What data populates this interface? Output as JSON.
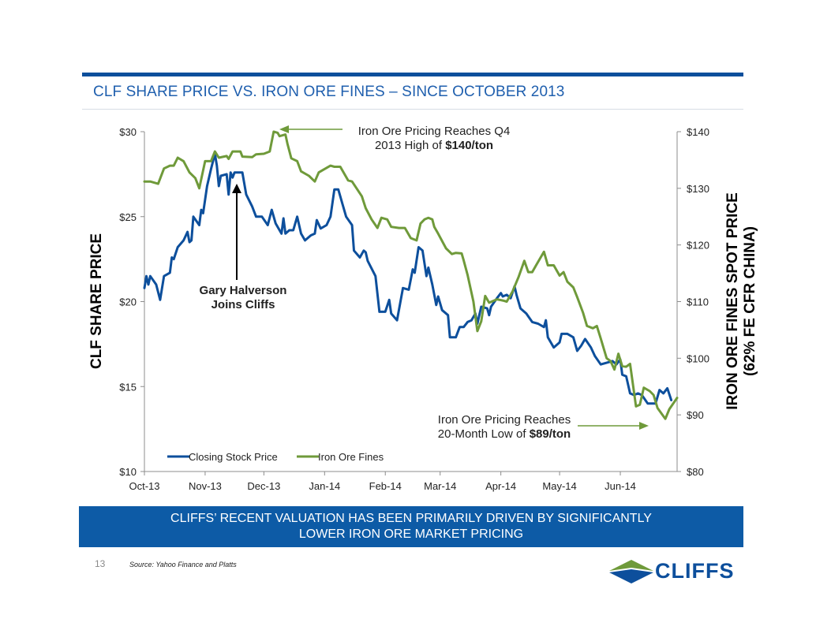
{
  "page": {
    "title": "CLF SHARE PRICE VS. IRON ORE FINES – SINCE OCTOBER 2013",
    "banner_line1": "CLIFFS’ RECENT VALUATION HAS BEEN PRIMARILY DRIVEN BY SIGNIFICANTLY",
    "banner_line2": "LOWER IRON ORE MARKET PRICING",
    "page_number": "13",
    "source": "Source: Yahoo Finance and Platts",
    "logo_text": "CLIFFS",
    "colors": {
      "accent": "#0d4f9c",
      "banner": "#0d5ba6",
      "title": "#1f5fae"
    }
  },
  "chart_data": {
    "type": "line",
    "ylabel_left": "CLF SHARE PRICE",
    "ylabel_right_line1": "IRON ORE FINES SPOT PRICE",
    "ylabel_right_line2": "(62% FE CFR CHINA)",
    "x_ticks": [
      "Oct-13",
      "Nov-13",
      "Dec-13",
      "Jan-14",
      "Feb-14",
      "Mar-14",
      "Apr-14",
      "May-14",
      "Jun-14"
    ],
    "x_range": [
      "2013-10-01",
      "2014-06-30"
    ],
    "y_left": {
      "min": 10,
      "max": 30,
      "step": 5,
      "format": "$"
    },
    "y_right": {
      "min": 80,
      "max": 140,
      "step": 10,
      "format": "$"
    },
    "legend_position": "bottom-left",
    "annotations": {
      "gary_line1": "Gary Halverson",
      "gary_line2": "Joins Cliffs",
      "high_line1": "Iron Ore Pricing  Reaches Q4",
      "high_line2_pre": "2013 High of ",
      "high_line2_bold": "$140/ton",
      "low_line1": "Iron Ore Pricing Reaches",
      "low_line2_pre": "20-Month Low of ",
      "low_line2_bold": "$89/ton"
    },
    "series": [
      {
        "name": "Closing Stock Price",
        "axis": "left",
        "color": "#0d4f9c",
        "points": [
          [
            "2013-10-01",
            20.8
          ],
          [
            "2013-10-02",
            21.5
          ],
          [
            "2013-10-03",
            21.0
          ],
          [
            "2013-10-04",
            21.5
          ],
          [
            "2013-10-07",
            21.0
          ],
          [
            "2013-10-09",
            20.1
          ],
          [
            "2013-10-11",
            21.5
          ],
          [
            "2013-10-14",
            21.7
          ],
          [
            "2013-10-15",
            22.6
          ],
          [
            "2013-10-16",
            22.5
          ],
          [
            "2013-10-18",
            23.2
          ],
          [
            "2013-10-21",
            23.6
          ],
          [
            "2013-10-23",
            24.1
          ],
          [
            "2013-10-24",
            23.5
          ],
          [
            "2013-10-25",
            23.6
          ],
          [
            "2013-10-26",
            25.0
          ],
          [
            "2013-10-29",
            24.5
          ],
          [
            "2013-10-30",
            25.4
          ],
          [
            "2013-10-31",
            25.2
          ],
          [
            "2013-11-02",
            26.8
          ],
          [
            "2013-11-04",
            27.8
          ],
          [
            "2013-11-06",
            28.7
          ],
          [
            "2013-11-07",
            28.0
          ],
          [
            "2013-11-08",
            26.8
          ],
          [
            "2013-11-09",
            27.4
          ],
          [
            "2013-11-12",
            27.5
          ],
          [
            "2013-11-13",
            26.3
          ],
          [
            "2013-11-14",
            27.6
          ],
          [
            "2013-11-15",
            27.3
          ],
          [
            "2013-11-16",
            27.6
          ],
          [
            "2013-11-20",
            27.6
          ],
          [
            "2013-11-22",
            26.3
          ],
          [
            "2013-11-25",
            25.6
          ],
          [
            "2013-11-27",
            25.0
          ],
          [
            "2013-11-30",
            25.0
          ],
          [
            "2013-12-03",
            24.5
          ],
          [
            "2013-12-05",
            25.4
          ],
          [
            "2013-12-07",
            24.6
          ],
          [
            "2013-12-10",
            24.0
          ],
          [
            "2013-12-11",
            24.9
          ],
          [
            "2013-12-12",
            24.0
          ],
          [
            "2013-12-14",
            24.2
          ],
          [
            "2013-12-16",
            24.2
          ],
          [
            "2013-12-18",
            25.0
          ],
          [
            "2013-12-20",
            24.0
          ],
          [
            "2013-12-22",
            23.6
          ],
          [
            "2013-12-25",
            23.9
          ],
          [
            "2013-12-27",
            24.0
          ],
          [
            "2013-12-28",
            24.8
          ],
          [
            "2013-12-30",
            24.3
          ],
          [
            "2014-01-02",
            24.5
          ],
          [
            "2014-01-04",
            25.0
          ],
          [
            "2014-01-06",
            26.6
          ],
          [
            "2014-01-08",
            26.6
          ],
          [
            "2014-01-10",
            25.8
          ],
          [
            "2014-01-12",
            25.0
          ],
          [
            "2014-01-15",
            24.5
          ],
          [
            "2014-01-16",
            23.0
          ],
          [
            "2014-01-19",
            22.6
          ],
          [
            "2014-01-21",
            23.0
          ],
          [
            "2014-01-22",
            22.9
          ],
          [
            "2014-01-23",
            22.4
          ],
          [
            "2014-01-27",
            21.5
          ],
          [
            "2014-01-29",
            19.4
          ],
          [
            "2014-02-01",
            19.4
          ],
          [
            "2014-02-03",
            20.1
          ],
          [
            "2014-02-04",
            19.3
          ],
          [
            "2014-02-07",
            18.9
          ],
          [
            "2014-02-10",
            20.8
          ],
          [
            "2014-02-13",
            20.7
          ],
          [
            "2014-02-15",
            21.9
          ],
          [
            "2014-02-16",
            21.7
          ],
          [
            "2014-02-18",
            23.2
          ],
          [
            "2014-02-20",
            23.0
          ],
          [
            "2014-02-22",
            21.5
          ],
          [
            "2014-02-23",
            22.0
          ],
          [
            "2014-02-25",
            21.0
          ],
          [
            "2014-02-27",
            19.8
          ],
          [
            "2014-02-28",
            20.3
          ],
          [
            "2014-03-02",
            19.5
          ],
          [
            "2014-03-05",
            19.2
          ],
          [
            "2014-03-06",
            17.9
          ],
          [
            "2014-03-09",
            17.9
          ],
          [
            "2014-03-11",
            18.5
          ],
          [
            "2014-03-13",
            18.5
          ],
          [
            "2014-03-15",
            18.8
          ],
          [
            "2014-03-17",
            18.9
          ],
          [
            "2014-03-19",
            19.3
          ],
          [
            "2014-03-20",
            18.7
          ],
          [
            "2014-03-22",
            19.7
          ],
          [
            "2014-03-25",
            19.6
          ],
          [
            "2014-03-26",
            19.2
          ],
          [
            "2014-03-27",
            19.7
          ],
          [
            "2014-03-30",
            20.2
          ],
          [
            "2014-04-01",
            20.5
          ],
          [
            "2014-04-02",
            20.3
          ],
          [
            "2014-04-04",
            20.4
          ],
          [
            "2014-04-06",
            20.2
          ],
          [
            "2014-04-08",
            20.9
          ],
          [
            "2014-04-09",
            20.4
          ],
          [
            "2014-04-11",
            19.6
          ],
          [
            "2014-04-14",
            19.3
          ],
          [
            "2014-04-17",
            18.8
          ],
          [
            "2014-04-20",
            18.7
          ],
          [
            "2014-04-23",
            18.5
          ],
          [
            "2014-04-24",
            18.9
          ],
          [
            "2014-04-25",
            17.9
          ],
          [
            "2014-04-28",
            17.3
          ],
          [
            "2014-05-01",
            17.6
          ],
          [
            "2014-05-02",
            18.1
          ],
          [
            "2014-05-05",
            18.1
          ],
          [
            "2014-05-08",
            17.9
          ],
          [
            "2014-05-10",
            17.1
          ],
          [
            "2014-05-12",
            17.4
          ],
          [
            "2014-05-14",
            17.8
          ],
          [
            "2014-05-17",
            17.3
          ],
          [
            "2014-05-19",
            16.8
          ],
          [
            "2014-05-22",
            16.3
          ],
          [
            "2014-05-25",
            16.4
          ],
          [
            "2014-05-28",
            16.5
          ],
          [
            "2014-05-30",
            16.3
          ],
          [
            "2014-06-01",
            16.6
          ],
          [
            "2014-06-02",
            15.7
          ],
          [
            "2014-06-04",
            15.6
          ],
          [
            "2014-06-06",
            14.6
          ],
          [
            "2014-06-08",
            14.5
          ],
          [
            "2014-06-10",
            14.6
          ],
          [
            "2014-06-12",
            14.5
          ],
          [
            "2014-06-15",
            14.0
          ],
          [
            "2014-06-19",
            14.0
          ],
          [
            "2014-06-21",
            14.8
          ],
          [
            "2014-06-23",
            14.6
          ],
          [
            "2014-06-25",
            14.9
          ],
          [
            "2014-06-27",
            14.2
          ]
        ]
      },
      {
        "name": "Iron Ore Fines",
        "axis": "right",
        "color": "#6f9a3a",
        "points": [
          [
            "2013-10-01",
            131.2
          ],
          [
            "2013-10-04",
            131.2
          ],
          [
            "2013-10-08",
            130.8
          ],
          [
            "2013-10-11",
            133.5
          ],
          [
            "2013-10-14",
            134.0
          ],
          [
            "2013-10-16",
            134.0
          ],
          [
            "2013-10-18",
            135.4
          ],
          [
            "2013-10-21",
            134.8
          ],
          [
            "2013-10-24",
            132.8
          ],
          [
            "2013-10-27",
            131.8
          ],
          [
            "2013-10-29",
            130.0
          ],
          [
            "2013-11-01",
            134.8
          ],
          [
            "2013-11-04",
            134.8
          ],
          [
            "2013-11-06",
            136.5
          ],
          [
            "2013-11-08",
            135.4
          ],
          [
            "2013-11-12",
            135.7
          ],
          [
            "2013-11-13",
            135.2
          ],
          [
            "2013-11-15",
            136.5
          ],
          [
            "2013-11-19",
            136.5
          ],
          [
            "2013-11-20",
            135.6
          ],
          [
            "2013-11-25",
            135.5
          ],
          [
            "2013-11-27",
            136.0
          ],
          [
            "2013-12-01",
            136.1
          ],
          [
            "2013-12-04",
            136.5
          ],
          [
            "2013-12-06",
            140.0
          ],
          [
            "2013-12-08",
            139.8
          ],
          [
            "2013-12-09",
            139.2
          ],
          [
            "2013-12-12",
            139.5
          ],
          [
            "2013-12-13",
            137.9
          ],
          [
            "2013-12-15",
            135.3
          ],
          [
            "2013-12-18",
            134.8
          ],
          [
            "2013-12-20",
            133.0
          ],
          [
            "2013-12-24",
            132.2
          ],
          [
            "2013-12-27",
            131.2
          ],
          [
            "2013-12-29",
            132.8
          ],
          [
            "2013-12-31",
            133.2
          ],
          [
            "2014-01-04",
            134.0
          ],
          [
            "2014-01-06",
            133.8
          ],
          [
            "2014-01-09",
            133.8
          ],
          [
            "2014-01-13",
            131.4
          ],
          [
            "2014-01-15",
            131.2
          ],
          [
            "2014-01-20",
            128.6
          ],
          [
            "2014-01-22",
            126.5
          ],
          [
            "2014-01-25",
            124.5
          ],
          [
            "2014-01-28",
            123.0
          ],
          [
            "2014-01-30",
            124.8
          ],
          [
            "2014-02-02",
            124.5
          ],
          [
            "2014-02-04",
            123.2
          ],
          [
            "2014-02-08",
            123.0
          ],
          [
            "2014-02-11",
            123.0
          ],
          [
            "2014-02-14",
            121.2
          ],
          [
            "2014-02-17",
            120.8
          ],
          [
            "2014-02-19",
            123.8
          ],
          [
            "2014-02-21",
            124.5
          ],
          [
            "2014-02-23",
            124.8
          ],
          [
            "2014-02-25",
            124.5
          ],
          [
            "2014-02-26",
            123.2
          ],
          [
            "2014-02-28",
            122.0
          ],
          [
            "2014-03-04",
            119.4
          ],
          [
            "2014-03-07",
            118.4
          ],
          [
            "2014-03-09",
            118.6
          ],
          [
            "2014-03-12",
            118.5
          ],
          [
            "2014-03-13",
            117.3
          ],
          [
            "2014-03-15",
            114.7
          ],
          [
            "2014-03-18",
            110.0
          ],
          [
            "2014-03-20",
            104.8
          ],
          [
            "2014-03-22",
            106.5
          ],
          [
            "2014-03-24",
            111.0
          ],
          [
            "2014-03-26",
            109.8
          ],
          [
            "2014-03-30",
            110.4
          ],
          [
            "2014-04-02",
            110.2
          ],
          [
            "2014-04-04",
            110.0
          ],
          [
            "2014-04-07",
            111.8
          ],
          [
            "2014-04-10",
            114.3
          ],
          [
            "2014-04-13",
            117.2
          ],
          [
            "2014-04-15",
            115.2
          ],
          [
            "2014-04-17",
            115.2
          ],
          [
            "2014-04-19",
            116.4
          ],
          [
            "2014-04-23",
            118.8
          ],
          [
            "2014-04-25",
            116.4
          ],
          [
            "2014-04-28",
            116.4
          ],
          [
            "2014-05-01",
            114.6
          ],
          [
            "2014-05-03",
            115.2
          ],
          [
            "2014-05-05",
            113.5
          ],
          [
            "2014-05-08",
            112.5
          ],
          [
            "2014-05-10",
            110.8
          ],
          [
            "2014-05-13",
            108.0
          ],
          [
            "2014-05-15",
            105.7
          ],
          [
            "2014-05-18",
            105.3
          ],
          [
            "2014-05-20",
            105.7
          ],
          [
            "2014-05-22",
            103.5
          ],
          [
            "2014-05-25",
            100.0
          ],
          [
            "2014-05-27",
            99.5
          ],
          [
            "2014-05-29",
            98.0
          ],
          [
            "2014-05-31",
            100.8
          ],
          [
            "2014-06-02",
            98.6
          ],
          [
            "2014-06-04",
            98.5
          ],
          [
            "2014-06-06",
            99.0
          ],
          [
            "2014-06-09",
            91.5
          ],
          [
            "2014-06-11",
            91.8
          ],
          [
            "2014-06-13",
            94.8
          ],
          [
            "2014-06-16",
            94.2
          ],
          [
            "2014-06-18",
            93.5
          ],
          [
            "2014-06-20",
            91.2
          ],
          [
            "2014-06-24",
            89.3
          ],
          [
            "2014-06-26",
            91.0
          ],
          [
            "2014-06-30",
            93.0
          ]
        ]
      }
    ]
  }
}
